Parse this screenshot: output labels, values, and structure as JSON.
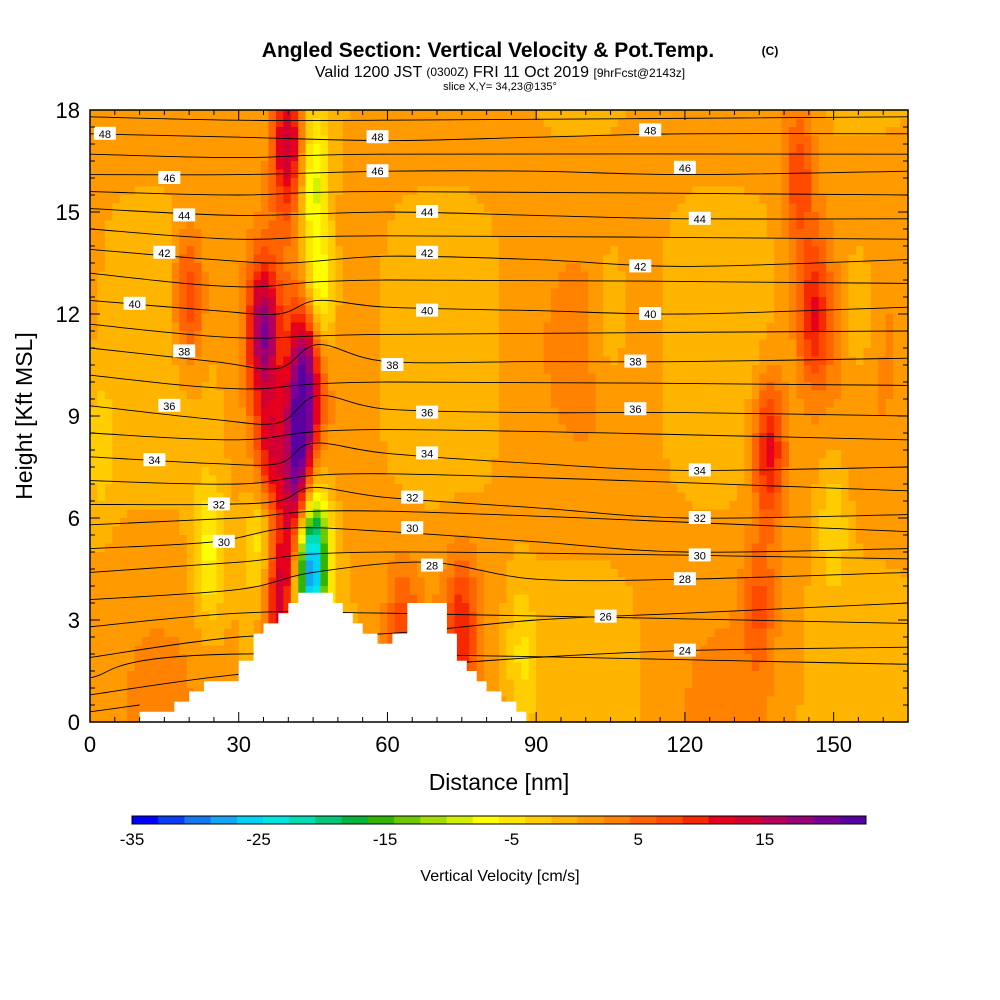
{
  "header": {
    "title": "Angled Section: Vertical Velocity & Pot.Temp.",
    "copyright_mark": "(C)",
    "valid_prefix": "Valid 1200 JST",
    "valid_utc": "(0300Z)",
    "valid_date": "FRI 11 Oct 2019",
    "forecast_tag": "[9hrFcst@2143z]",
    "slice": "slice X,Y= 34,23@135°"
  },
  "chart_data": {
    "type": "heatmap",
    "title": "Angled Section: Vertical Velocity & Pot.Temp.",
    "xlabel": "Distance [nm]",
    "ylabel": "Height [Kft MSL]",
    "xlim": [
      0,
      165
    ],
    "ylim": [
      0,
      18
    ],
    "x_ticks": [
      0,
      30,
      60,
      90,
      120,
      150
    ],
    "y_ticks": [
      0,
      3,
      6,
      9,
      12,
      15,
      18
    ],
    "colorbar": {
      "label": "Vertical Velocity [cm/s]",
      "min": -35,
      "max": 23,
      "step": 2,
      "tick_values": [
        -35,
        -25,
        -15,
        -5,
        5,
        15
      ],
      "tick_labels": [
        "-35",
        "-25",
        "-15",
        "-5",
        "5",
        "15"
      ],
      "colors": [
        "#0000ff",
        "#0a3cf5",
        "#1478f0",
        "#14a5f5",
        "#00d2f5",
        "#00e6e1",
        "#00dcb4",
        "#00c878",
        "#00b43c",
        "#32b400",
        "#6ec800",
        "#a5dc00",
        "#d2f000",
        "#ffff00",
        "#ffe600",
        "#ffcd00",
        "#ffb400",
        "#ff9b00",
        "#ff8200",
        "#ff6400",
        "#ff4b00",
        "#f52800",
        "#e6001e",
        "#d20032",
        "#b4005a",
        "#960078",
        "#780096",
        "#5a00a0"
      ]
    },
    "velocity_features": [
      {
        "x": 35,
        "y": 11.5,
        "w": 0.9
      },
      {
        "x": 36.5,
        "y": 7.5,
        "w": 0.7
      },
      {
        "x": 38,
        "y": 3.5,
        "w": 0.8
      },
      {
        "x": 42,
        "y": 8.0,
        "w": 1.0
      },
      {
        "x": 41,
        "y": 6.0,
        "w": 0.8
      },
      {
        "x": 43.5,
        "y": 10.5,
        "w": 0.9
      },
      {
        "x": 40,
        "y": 17.0,
        "w": 0.8
      },
      {
        "x": 35,
        "y": 5.5,
        "w": -0.5
      },
      {
        "x": 40,
        "y": 7.0,
        "w": -0.5
      },
      {
        "x": 45,
        "y": 5.0,
        "w": -1.0
      },
      {
        "x": 44,
        "y": 4.2,
        "w": -0.8
      },
      {
        "x": 46,
        "y": 12.5,
        "w": -0.6
      },
      {
        "x": 45,
        "y": 16.0,
        "w": -0.5
      },
      {
        "x": 24,
        "y": 5.0,
        "w": -0.4
      },
      {
        "x": 20,
        "y": 12.5,
        "w": 0.45
      },
      {
        "x": 137,
        "y": 8.0,
        "w": 0.6
      },
      {
        "x": 146,
        "y": 12.0,
        "w": 0.5
      },
      {
        "x": 143,
        "y": 16.0,
        "w": 0.4
      },
      {
        "x": 135,
        "y": 3.5,
        "w": 0.3
      },
      {
        "x": 87,
        "y": 2.0,
        "w": -0.25
      },
      {
        "x": 105,
        "y": 12.0,
        "w": -0.2
      },
      {
        "x": 150,
        "y": 6.0,
        "w": -0.25
      },
      {
        "x": 155,
        "y": 12.0,
        "w": -0.25
      },
      {
        "x": 63,
        "y": 2.5,
        "w": 0.35
      },
      {
        "x": 75,
        "y": 2.8,
        "w": 0.45
      },
      {
        "x": 2,
        "y": 8.0,
        "w": -0.2
      }
    ],
    "terrain_profile": {
      "x": [
        0,
        10,
        10,
        17,
        17,
        20,
        20,
        23,
        23,
        30,
        30,
        33,
        33,
        35,
        35,
        38,
        38,
        40,
        40,
        42,
        42,
        49,
        49,
        51,
        51,
        53,
        53,
        55,
        55,
        58,
        58,
        61,
        61,
        64,
        64,
        66,
        66,
        72,
        72,
        74,
        74,
        76,
        76,
        78,
        78,
        80,
        80,
        83,
        83,
        86,
        86,
        88,
        88,
        165
      ],
      "y": [
        0,
        0,
        0.3,
        0.3,
        0.6,
        0.6,
        0.9,
        0.9,
        1.2,
        1.2,
        1.8,
        1.8,
        2.6,
        2.6,
        2.9,
        2.9,
        3.2,
        3.2,
        3.5,
        3.5,
        3.8,
        3.8,
        3.5,
        3.5,
        3.2,
        3.2,
        2.9,
        2.9,
        2.6,
        2.6,
        2.3,
        2.3,
        2.6,
        2.6,
        3.5,
        3.5,
        3.5,
        3.5,
        2.6,
        2.6,
        1.8,
        1.8,
        1.5,
        1.5,
        1.2,
        1.2,
        0.9,
        0.9,
        0.6,
        0.6,
        0.3,
        0.3,
        0,
        0
      ]
    },
    "isentropes": [
      {
        "theta": 24,
        "pts": [
          [
            0,
            0.8
          ],
          [
            30,
            1.4
          ],
          [
            60,
            1.6
          ],
          [
            90,
            1.9
          ],
          [
            120,
            2.1
          ],
          [
            165,
            2.2
          ]
        ]
      },
      {
        "theta": 26,
        "pts": [
          [
            0,
            1.9
          ],
          [
            30,
            2.5
          ],
          [
            60,
            2.6
          ],
          [
            90,
            3.0
          ],
          [
            120,
            3.2
          ],
          [
            165,
            3.5
          ]
        ]
      },
      {
        "theta": 28,
        "pts": [
          [
            0,
            3.6
          ],
          [
            30,
            3.9
          ],
          [
            45,
            4.4
          ],
          [
            68,
            4.7
          ],
          [
            90,
            4.2
          ],
          [
            120,
            4.2
          ],
          [
            165,
            4.4
          ]
        ]
      },
      {
        "theta": 30,
        "pts": [
          [
            0,
            5.1
          ],
          [
            25,
            5.3
          ],
          [
            40,
            5.7
          ],
          [
            60,
            5.6
          ],
          [
            90,
            5.3
          ],
          [
            120,
            5.0
          ],
          [
            165,
            5.1
          ]
        ]
      },
      {
        "theta": 32,
        "pts": [
          [
            0,
            6.4
          ],
          [
            25,
            6.4
          ],
          [
            38,
            6.5
          ],
          [
            45,
            6.9
          ],
          [
            60,
            6.6
          ],
          [
            90,
            6.3
          ],
          [
            120,
            6.0
          ],
          [
            165,
            6.1
          ]
        ]
      },
      {
        "theta": 34,
        "pts": [
          [
            0,
            7.8
          ],
          [
            25,
            7.6
          ],
          [
            38,
            7.6
          ],
          [
            45,
            8.2
          ],
          [
            60,
            7.9
          ],
          [
            90,
            7.6
          ],
          [
            120,
            7.4
          ],
          [
            165,
            7.5
          ]
        ]
      },
      {
        "theta": 36,
        "pts": [
          [
            0,
            9.3
          ],
          [
            25,
            8.9
          ],
          [
            38,
            8.8
          ],
          [
            46,
            9.6
          ],
          [
            60,
            9.2
          ],
          [
            90,
            9.1
          ],
          [
            120,
            9.1
          ],
          [
            165,
            9.0
          ]
        ]
      },
      {
        "theta": 38,
        "pts": [
          [
            0,
            11.0
          ],
          [
            25,
            10.6
          ],
          [
            38,
            10.4
          ],
          [
            46,
            11.1
          ],
          [
            60,
            10.6
          ],
          [
            90,
            10.6
          ],
          [
            120,
            10.6
          ],
          [
            165,
            10.7
          ]
        ]
      },
      {
        "theta": 40,
        "pts": [
          [
            0,
            12.4
          ],
          [
            25,
            12.1
          ],
          [
            38,
            12.0
          ],
          [
            46,
            12.4
          ],
          [
            60,
            12.2
          ],
          [
            90,
            12.1
          ],
          [
            120,
            12.0
          ],
          [
            165,
            12.2
          ]
        ]
      },
      {
        "theta": 42,
        "pts": [
          [
            0,
            13.9
          ],
          [
            25,
            13.6
          ],
          [
            40,
            13.5
          ],
          [
            60,
            13.7
          ],
          [
            90,
            13.6
          ],
          [
            120,
            13.4
          ],
          [
            165,
            13.6
          ]
        ]
      },
      {
        "theta": 44,
        "pts": [
          [
            0,
            15.1
          ],
          [
            30,
            14.9
          ],
          [
            60,
            15.0
          ],
          [
            90,
            14.9
          ],
          [
            120,
            14.8
          ],
          [
            165,
            14.8
          ]
        ]
      },
      {
        "theta": 46,
        "pts": [
          [
            0,
            16.1
          ],
          [
            30,
            16.1
          ],
          [
            60,
            16.2
          ],
          [
            90,
            16.2
          ],
          [
            120,
            16.1
          ],
          [
            165,
            16.2
          ]
        ]
      },
      {
        "theta": 48,
        "pts": [
          [
            0,
            17.3
          ],
          [
            30,
            17.2
          ],
          [
            60,
            17.1
          ],
          [
            90,
            17.2
          ],
          [
            120,
            17.3
          ],
          [
            165,
            17.3
          ]
        ]
      }
    ],
    "extra_isentropes": [
      [
        [
          0,
          0.3
        ],
        [
          10,
          0.5
        ]
      ],
      [
        [
          0,
          1.3
        ],
        [
          30,
          2.0
        ],
        [
          165,
          1.7
        ]
      ],
      [
        [
          0,
          2.8
        ],
        [
          30,
          3.2
        ],
        [
          60,
          3.2
        ],
        [
          165,
          2.9
        ]
      ],
      [
        [
          0,
          4.4
        ],
        [
          30,
          4.7
        ],
        [
          60,
          5.0
        ],
        [
          165,
          4.8
        ]
      ],
      [
        [
          0,
          5.8
        ],
        [
          30,
          6.0
        ],
        [
          60,
          6.2
        ],
        [
          165,
          5.6
        ]
      ],
      [
        [
          0,
          7.1
        ],
        [
          30,
          7.0
        ],
        [
          60,
          7.3
        ],
        [
          165,
          6.8
        ]
      ],
      [
        [
          0,
          8.5
        ],
        [
          30,
          8.3
        ],
        [
          60,
          8.6
        ],
        [
          165,
          8.3
        ]
      ],
      [
        [
          0,
          10.2
        ],
        [
          30,
          9.8
        ],
        [
          60,
          10.0
        ],
        [
          165,
          9.9
        ]
      ],
      [
        [
          0,
          11.7
        ],
        [
          30,
          11.3
        ],
        [
          60,
          11.4
        ],
        [
          165,
          11.5
        ]
      ],
      [
        [
          0,
          13.2
        ],
        [
          30,
          12.8
        ],
        [
          60,
          13.0
        ],
        [
          165,
          12.9
        ]
      ],
      [
        [
          0,
          14.5
        ],
        [
          30,
          14.2
        ],
        [
          60,
          14.3
        ],
        [
          165,
          14.2
        ]
      ],
      [
        [
          0,
          15.6
        ],
        [
          30,
          15.5
        ],
        [
          60,
          15.6
        ],
        [
          165,
          15.5
        ]
      ],
      [
        [
          0,
          16.7
        ],
        [
          30,
          16.6
        ],
        [
          60,
          16.7
        ],
        [
          165,
          16.7
        ]
      ],
      [
        [
          0,
          17.8
        ],
        [
          30,
          17.7
        ],
        [
          60,
          17.7
        ],
        [
          165,
          17.8
        ]
      ]
    ],
    "contour_labels": [
      {
        "text": "48",
        "x": 3,
        "y": 17.3
      },
      {
        "text": "48",
        "x": 58,
        "y": 17.2
      },
      {
        "text": "48",
        "x": 113,
        "y": 17.4
      },
      {
        "text": "46",
        "x": 16,
        "y": 16.0
      },
      {
        "text": "46",
        "x": 58,
        "y": 16.2
      },
      {
        "text": "46",
        "x": 120,
        "y": 16.3
      },
      {
        "text": "44",
        "x": 19,
        "y": 14.9
      },
      {
        "text": "44",
        "x": 68,
        "y": 15.0
      },
      {
        "text": "44",
        "x": 123,
        "y": 14.8
      },
      {
        "text": "42",
        "x": 15,
        "y": 13.8
      },
      {
        "text": "42",
        "x": 68,
        "y": 13.8
      },
      {
        "text": "42",
        "x": 111,
        "y": 13.4
      },
      {
        "text": "40",
        "x": 9,
        "y": 12.3
      },
      {
        "text": "40",
        "x": 68,
        "y": 12.1
      },
      {
        "text": "40",
        "x": 113,
        "y": 12.0
      },
      {
        "text": "38",
        "x": 19,
        "y": 10.9
      },
      {
        "text": "38",
        "x": 61,
        "y": 10.5
      },
      {
        "text": "38",
        "x": 110,
        "y": 10.6
      },
      {
        "text": "36",
        "x": 16,
        "y": 9.3
      },
      {
        "text": "36",
        "x": 68,
        "y": 9.1
      },
      {
        "text": "36",
        "x": 110,
        "y": 9.2
      },
      {
        "text": "34",
        "x": 13,
        "y": 7.7
      },
      {
        "text": "34",
        "x": 68,
        "y": 7.9
      },
      {
        "text": "34",
        "x": 123,
        "y": 7.4
      },
      {
        "text": "32",
        "x": 26,
        "y": 6.4
      },
      {
        "text": "32",
        "x": 65,
        "y": 6.6
      },
      {
        "text": "32",
        "x": 123,
        "y": 6.0
      },
      {
        "text": "30",
        "x": 27,
        "y": 5.3
      },
      {
        "text": "30",
        "x": 65,
        "y": 5.7
      },
      {
        "text": "30",
        "x": 123,
        "y": 4.9
      },
      {
        "text": "28",
        "x": 69,
        "y": 4.6
      },
      {
        "text": "28",
        "x": 120,
        "y": 4.2
      },
      {
        "text": "26",
        "x": 104,
        "y": 3.1
      },
      {
        "text": "24",
        "x": 120,
        "y": 2.1
      }
    ]
  }
}
